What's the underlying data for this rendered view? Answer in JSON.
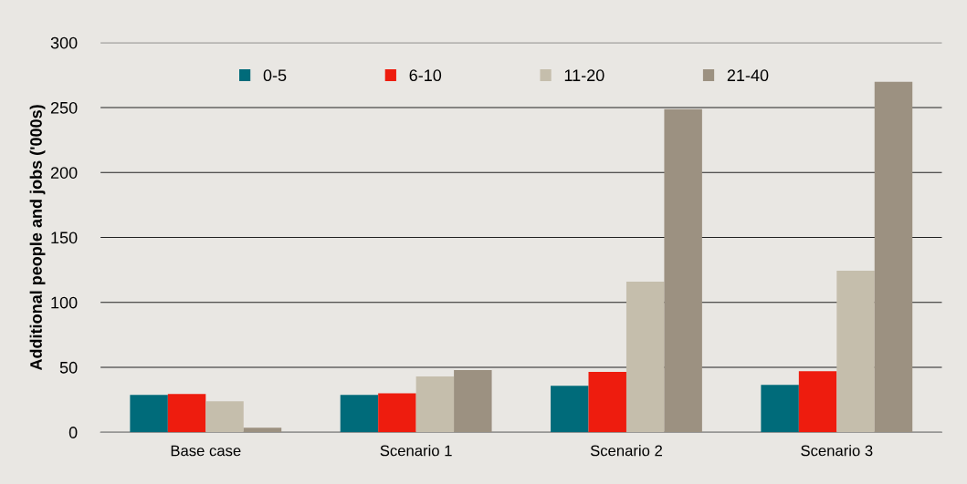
{
  "chart_data": {
    "type": "bar",
    "ylabel": "Additional people and jobs ('000s)",
    "categories": [
      "Base case",
      "Scenario 1",
      "Scenario 2",
      "Scenario 3"
    ],
    "series": [
      {
        "name": "0-5",
        "color": "#006b7a",
        "values": [
          28.8,
          28.8,
          35.8,
          36.5
        ]
      },
      {
        "name": "6-10",
        "color": "#ee1c0e",
        "values": [
          29.5,
          30,
          46.4,
          47
        ]
      },
      {
        "name": "11-20",
        "color": "#c5beac",
        "values": [
          23.9,
          42.9,
          116,
          124.4
        ]
      },
      {
        "name": "21-40",
        "color": "#9c9181",
        "values": [
          3.5,
          47.8,
          248.7,
          269.8
        ]
      }
    ],
    "ylim": [
      0,
      300
    ],
    "yticks": [
      0,
      50,
      100,
      150,
      200,
      250,
      300
    ],
    "grid": "y",
    "legend": "top"
  }
}
